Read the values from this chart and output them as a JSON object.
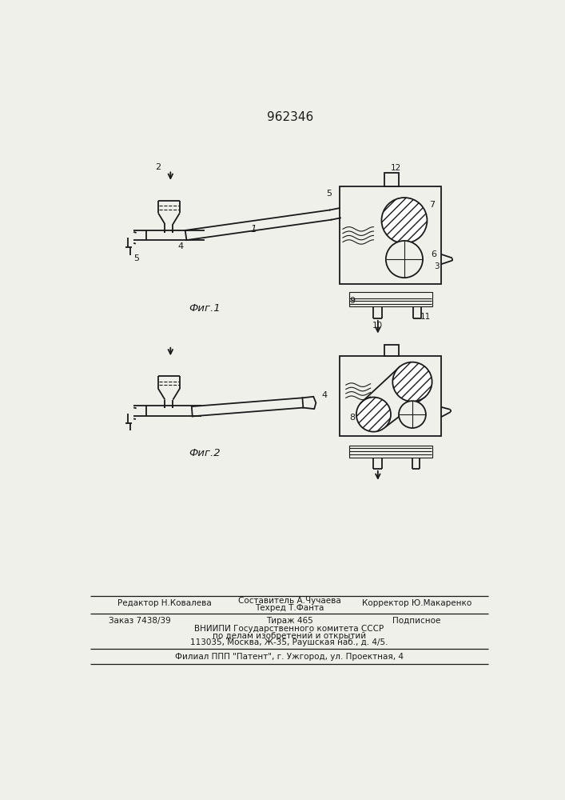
{
  "patent_number": "962346",
  "fig1_label": "Фиг.1",
  "fig2_label": "Фиг.2",
  "bg_color": "#f0f0eb",
  "line_color": "#1a1a1a",
  "text_color": "#1a1a1a",
  "editor_line": "Редактор Н.Ковалева",
  "sostavitel_line": "Составитель А.Чучаева",
  "tehred_line": "Техред Т.Фанта",
  "korrektor_line": "Корректор Ю.Макаренко",
  "zakaz_line": "Заказ 7438/39",
  "tirazh_line": "Тираж 465",
  "podpisnoe_line": "Подписное",
  "vniipи_line1": "ВНИИПИ Государственного комитета СССР",
  "vniipи_line2": "по делам изобретений и открытий",
  "vniipи_line3": "113035, Москва, Ж-35, Раушская наб., д. 4/5.",
  "filial_line": "Филиал ППП \"Патент\", г. Ужгород, ул. Проектная, 4"
}
